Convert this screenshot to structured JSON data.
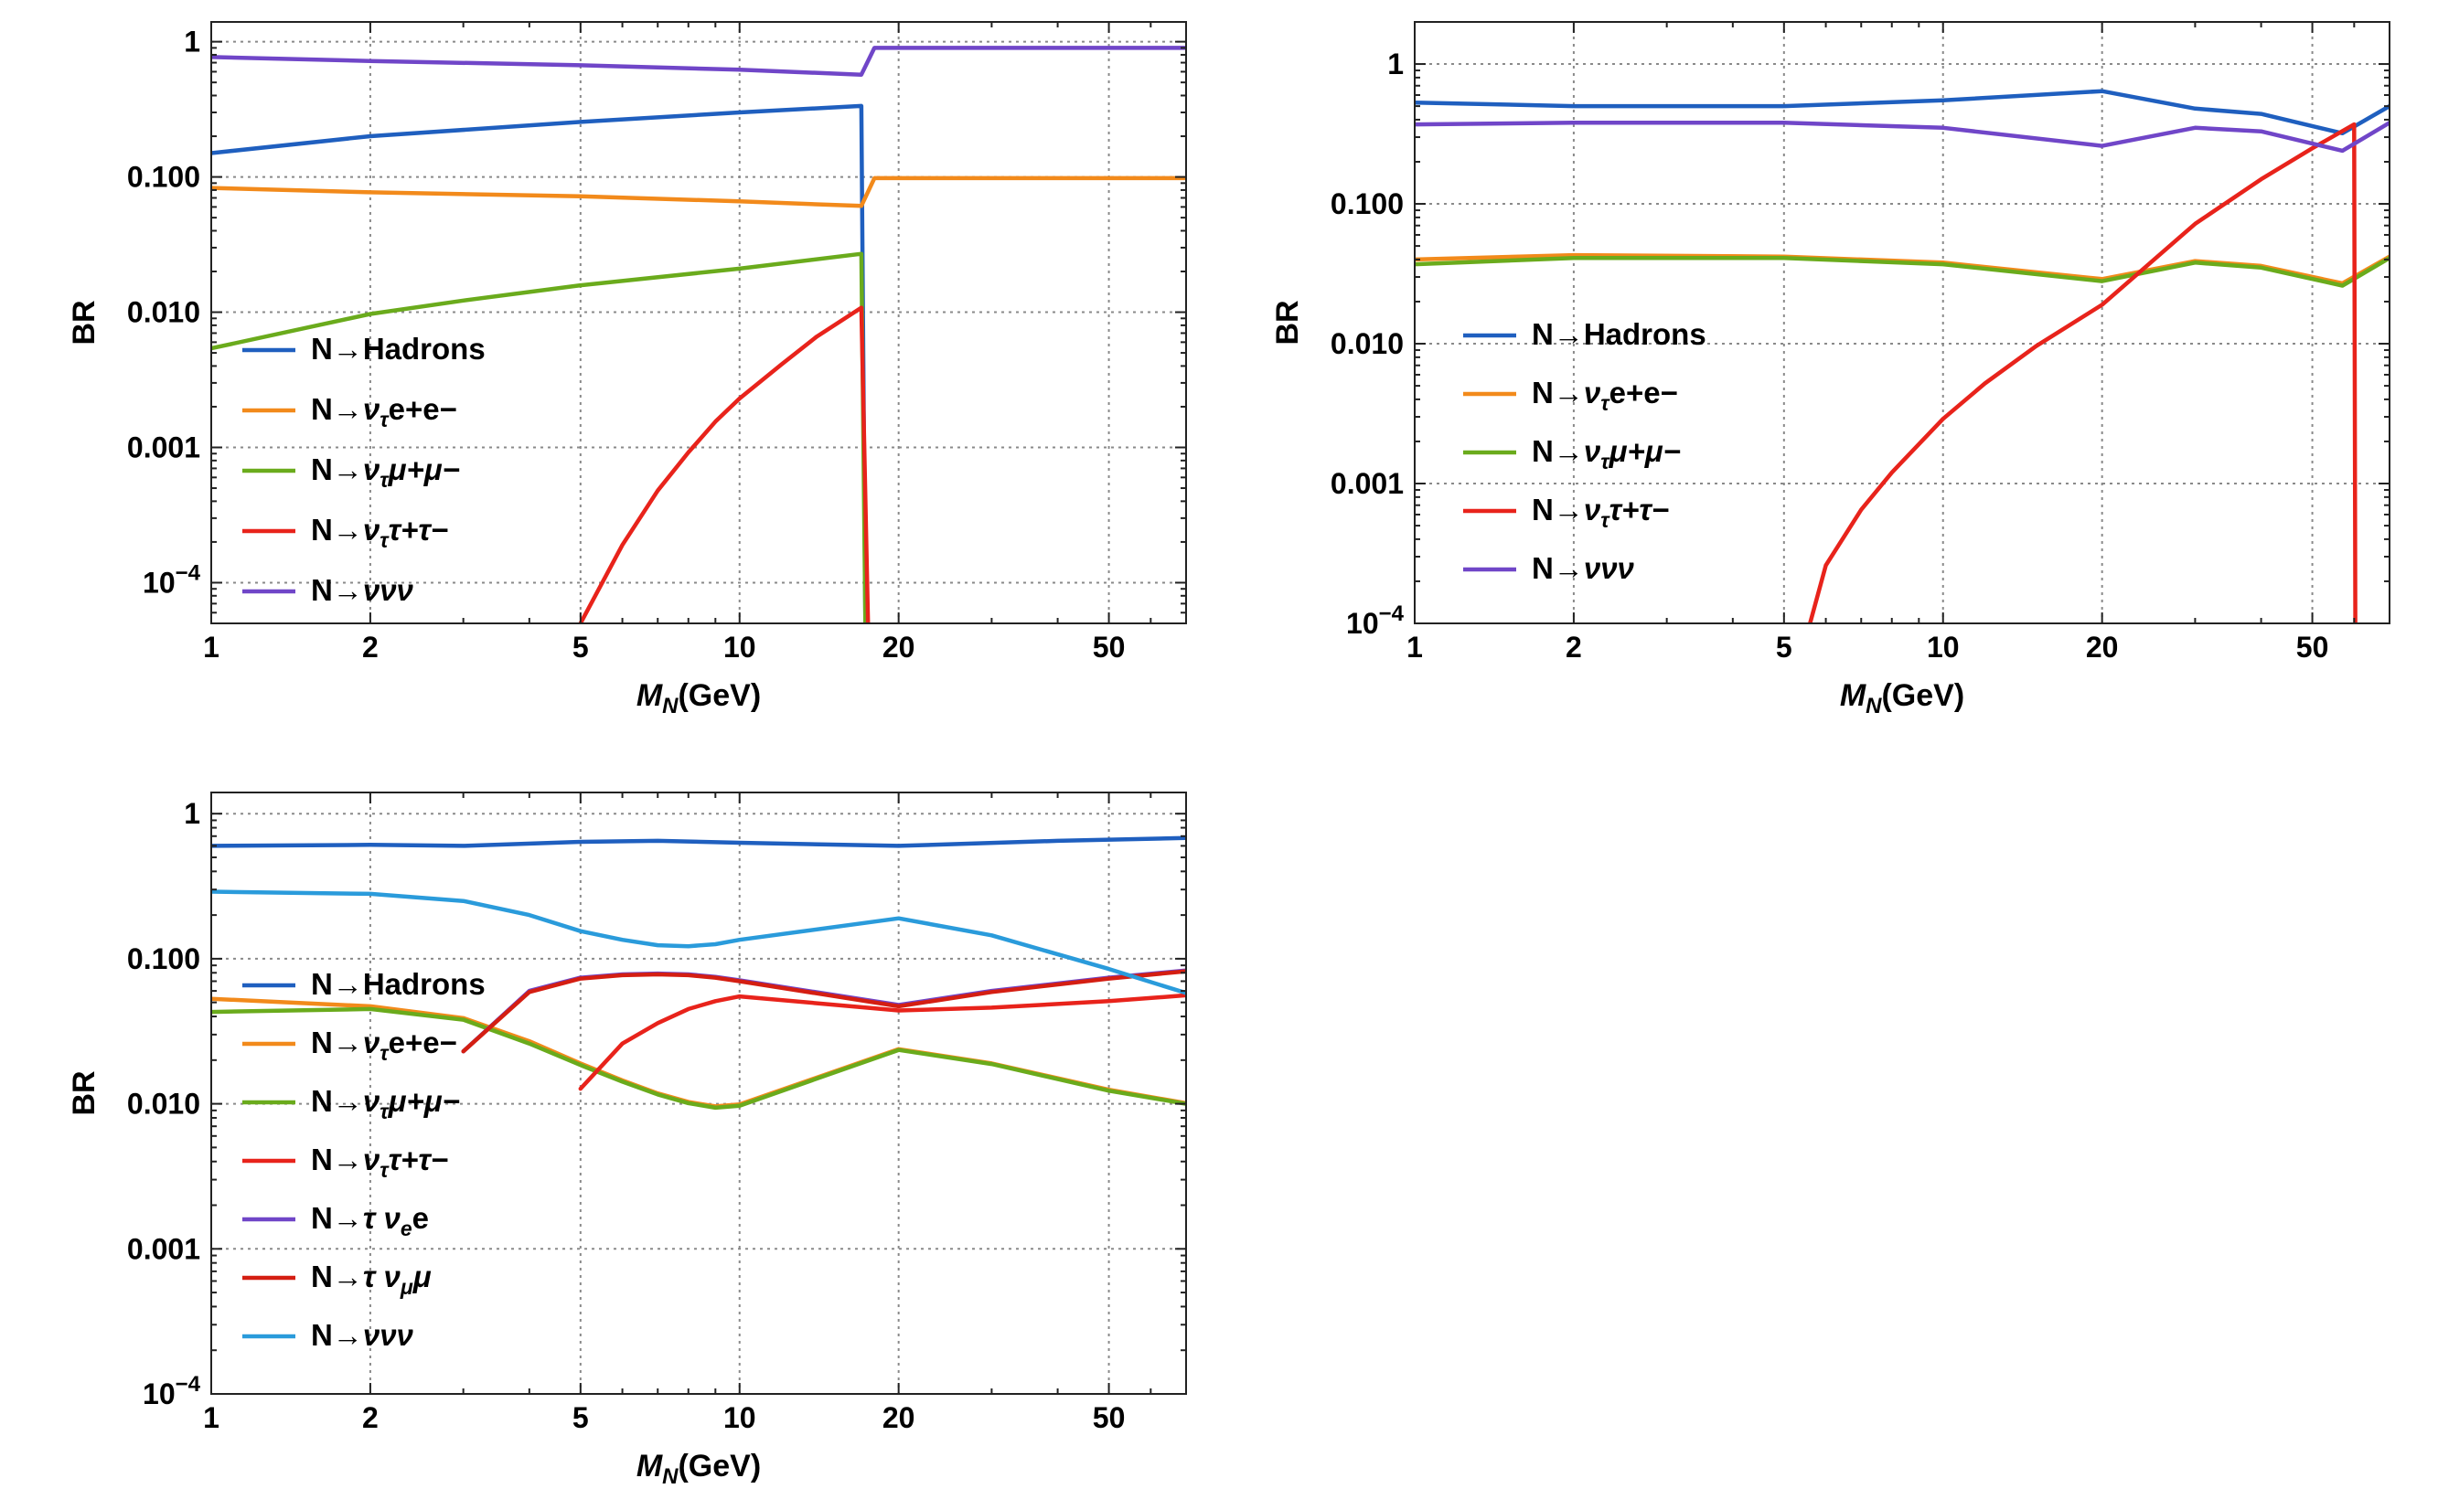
{
  "chart_data": [
    {
      "type": "line",
      "ylabel": "BR",
      "xlabel": "M_N(GeV)",
      "xlabel_main": "M",
      "xlabel_sub": "N",
      "xlabel_unit": "(GeV)",
      "xscale": "log",
      "yscale": "log",
      "xlim": [
        1,
        70
      ],
      "ylim": [
        5e-05,
        1.4
      ],
      "xticks": [
        1,
        2,
        5,
        10,
        20,
        50
      ],
      "xtick_labels": [
        "1",
        "2",
        "5",
        "10",
        "20",
        "50"
      ],
      "yticks": [
        1,
        0.1,
        0.01,
        0.001,
        0.0001
      ],
      "ytick_labels": [
        {
          "base": "1"
        },
        {
          "base": "0.100"
        },
        {
          "base": "0.010"
        },
        {
          "base": "0.001"
        },
        {
          "base": "10",
          "exp": "−4"
        }
      ],
      "grid": true,
      "legend_position": "bottom-left",
      "series": [
        {
          "name": "N→Hadrons",
          "label": {
            "pre": "N→Hadrons"
          },
          "color": "#1f5fbf",
          "points": [
            [
              1,
              0.15
            ],
            [
              2,
              0.2
            ],
            [
              5,
              0.255
            ],
            [
              10,
              0.3
            ],
            [
              17,
              0.335
            ],
            [
              17.3,
              5e-05
            ]
          ]
        },
        {
          "name": "N→ντe+e−",
          "label": {
            "pre": "N→",
            "nu": "ν",
            "sub": "τ",
            "post": "e+e−"
          },
          "color": "#f28a1b",
          "points": [
            [
              1,
              0.083
            ],
            [
              2,
              0.077
            ],
            [
              5,
              0.072
            ],
            [
              10,
              0.066
            ],
            [
              17,
              0.061
            ],
            [
              18,
              0.098
            ],
            [
              70,
              0.098
            ]
          ]
        },
        {
          "name": "N→ντμ+μ−",
          "label": {
            "pre": "N→",
            "nu": "ν",
            "sub": "τ",
            "post": "μ+μ−"
          },
          "color": "#6aab1c",
          "points": [
            [
              1,
              0.0054
            ],
            [
              2,
              0.0097
            ],
            [
              3,
              0.0122
            ],
            [
              5,
              0.0158
            ],
            [
              10,
              0.021
            ],
            [
              17,
              0.027
            ],
            [
              17.3,
              5e-05
            ]
          ]
        },
        {
          "name": "N→νττ+τ−",
          "label": {
            "pre": "N→",
            "nu": "ν",
            "sub": "τ",
            "post": "τ+τ−"
          },
          "color": "#e8231b",
          "points": [
            [
              5,
              5e-05
            ],
            [
              6,
              0.00019
            ],
            [
              7,
              0.00048
            ],
            [
              8,
              0.00092
            ],
            [
              9,
              0.00155
            ],
            [
              10,
              0.0023
            ],
            [
              12,
              0.0041
            ],
            [
              14,
              0.0066
            ],
            [
              17,
              0.0108
            ],
            [
              17.5,
              5e-05
            ]
          ]
        },
        {
          "name": "N→ννν",
          "label": {
            "pre": "N→",
            "nu": "ννν"
          },
          "color": "#7046c8",
          "points": [
            [
              1,
              0.77
            ],
            [
              2,
              0.72
            ],
            [
              5,
              0.67
            ],
            [
              10,
              0.62
            ],
            [
              17,
              0.57
            ],
            [
              18,
              0.9
            ],
            [
              70,
              0.9
            ]
          ]
        }
      ]
    },
    {
      "type": "line",
      "ylabel": "BR",
      "xlabel": "M_N(GeV)",
      "xlabel_main": "M",
      "xlabel_sub": "N",
      "xlabel_unit": "(GeV)",
      "xscale": "log",
      "yscale": "log",
      "xlim": [
        1,
        70
      ],
      "ylim": [
        0.0001,
        2
      ],
      "xticks": [
        1,
        2,
        5,
        10,
        20,
        50
      ],
      "xtick_labels": [
        "1",
        "2",
        "5",
        "10",
        "20",
        "50"
      ],
      "yticks": [
        1,
        0.1,
        0.01,
        0.001,
        0.0001
      ],
      "ytick_labels": [
        {
          "base": "1"
        },
        {
          "base": "0.100"
        },
        {
          "base": "0.010"
        },
        {
          "base": "0.001"
        },
        {
          "base": "10",
          "exp": "−4"
        }
      ],
      "grid": true,
      "legend_position": "center-left",
      "series": [
        {
          "name": "N→Hadrons",
          "label": {
            "pre": "N→Hadrons"
          },
          "color": "#1f5fbf",
          "points": [
            [
              1,
              0.53
            ],
            [
              2,
              0.5
            ],
            [
              5,
              0.5
            ],
            [
              10,
              0.55
            ],
            [
              20,
              0.64
            ],
            [
              30,
              0.48
            ],
            [
              40,
              0.44
            ],
            [
              57,
              0.32
            ],
            [
              70,
              0.5
            ]
          ]
        },
        {
          "name": "N→ντe+e−",
          "label": {
            "pre": "N→",
            "nu": "ν",
            "sub": "τ",
            "post": "e+e−"
          },
          "color": "#f28a1b",
          "points": [
            [
              1,
              0.04
            ],
            [
              2,
              0.043
            ],
            [
              5,
              0.042
            ],
            [
              10,
              0.038
            ],
            [
              20,
              0.029
            ],
            [
              30,
              0.039
            ],
            [
              40,
              0.036
            ],
            [
              57,
              0.027
            ],
            [
              70,
              0.042
            ]
          ]
        },
        {
          "name": "N→ντμ+μ−",
          "label": {
            "pre": "N→",
            "nu": "ν",
            "sub": "τ",
            "post": "μ+μ−"
          },
          "color": "#6aab1c",
          "points": [
            [
              1,
              0.037
            ],
            [
              2,
              0.041
            ],
            [
              5,
              0.041
            ],
            [
              10,
              0.037
            ],
            [
              20,
              0.028
            ],
            [
              30,
              0.038
            ],
            [
              40,
              0.035
            ],
            [
              57,
              0.026
            ],
            [
              70,
              0.041
            ]
          ]
        },
        {
          "name": "N→νττ+τ−",
          "label": {
            "pre": "N→",
            "nu": "ν",
            "sub": "τ",
            "post": "τ+τ−"
          },
          "color": "#e8231b",
          "points": [
            [
              5.6,
              0.0001
            ],
            [
              6,
              0.00026
            ],
            [
              7,
              0.00065
            ],
            [
              8,
              0.0012
            ],
            [
              10,
              0.0029
            ],
            [
              12,
              0.0052
            ],
            [
              15,
              0.0096
            ],
            [
              20,
              0.019
            ],
            [
              30,
              0.072
            ],
            [
              40,
              0.15
            ],
            [
              50,
              0.25
            ],
            [
              60,
              0.37
            ],
            [
              60.3,
              0.0001
            ]
          ]
        },
        {
          "name": "N→ννν",
          "label": {
            "pre": "N→",
            "nu": "ννν"
          },
          "color": "#7046c8",
          "points": [
            [
              1,
              0.37
            ],
            [
              2,
              0.38
            ],
            [
              5,
              0.38
            ],
            [
              10,
              0.35
            ],
            [
              20,
              0.26
            ],
            [
              30,
              0.35
            ],
            [
              40,
              0.33
            ],
            [
              57,
              0.24
            ],
            [
              70,
              0.38
            ]
          ]
        }
      ]
    },
    {
      "type": "line",
      "ylabel": "BR",
      "xlabel": "M_N(GeV)",
      "xlabel_main": "M",
      "xlabel_sub": "N",
      "xlabel_unit": "(GeV)",
      "xscale": "log",
      "yscale": "log",
      "xlim": [
        1,
        70
      ],
      "ylim": [
        0.0001,
        1.4
      ],
      "xticks": [
        1,
        2,
        5,
        10,
        20,
        50
      ],
      "xtick_labels": [
        "1",
        "2",
        "5",
        "10",
        "20",
        "50"
      ],
      "yticks": [
        1,
        0.1,
        0.01,
        0.001,
        0.0001
      ],
      "ytick_labels": [
        {
          "base": "1"
        },
        {
          "base": "0.100"
        },
        {
          "base": "0.010"
        },
        {
          "base": "0.001"
        },
        {
          "base": "10",
          "exp": "−4"
        }
      ],
      "grid": true,
      "legend_position": "left",
      "series": [
        {
          "name": "N→Hadrons",
          "label": {
            "pre": "N→Hadrons"
          },
          "color": "#1f5fbf",
          "points": [
            [
              1,
              0.6
            ],
            [
              2,
              0.61
            ],
            [
              3,
              0.6
            ],
            [
              5,
              0.64
            ],
            [
              7,
              0.65
            ],
            [
              10,
              0.63
            ],
            [
              20,
              0.6
            ],
            [
              40,
              0.65
            ],
            [
              70,
              0.68
            ]
          ]
        },
        {
          "name": "N→ντe+e−",
          "label": {
            "pre": "N→",
            "nu": "ν",
            "sub": "τ",
            "post": "e+e−"
          },
          "color": "#f28a1b",
          "points": [
            [
              1,
              0.053
            ],
            [
              2,
              0.047
            ],
            [
              3,
              0.039
            ],
            [
              4,
              0.027
            ],
            [
              5,
              0.019
            ],
            [
              6,
              0.0145
            ],
            [
              7,
              0.0118
            ],
            [
              8,
              0.0103
            ],
            [
              9,
              0.0096
            ],
            [
              10,
              0.0099
            ],
            [
              20,
              0.0238
            ],
            [
              30,
              0.019
            ],
            [
              50,
              0.0125
            ],
            [
              70,
              0.0101
            ]
          ]
        },
        {
          "name": "N→ντμ+μ−",
          "label": {
            "pre": "N→",
            "nu": "ν",
            "sub": "τ",
            "post": "μ+μ−"
          },
          "color": "#6aab1c",
          "points": [
            [
              1,
              0.043
            ],
            [
              2,
              0.045
            ],
            [
              3,
              0.038
            ],
            [
              4,
              0.026
            ],
            [
              5,
              0.0185
            ],
            [
              6,
              0.0142
            ],
            [
              7,
              0.0116
            ],
            [
              8,
              0.0101
            ],
            [
              9,
              0.0094
            ],
            [
              10,
              0.0097
            ],
            [
              20,
              0.0235
            ],
            [
              30,
              0.0188
            ],
            [
              50,
              0.0123
            ],
            [
              70,
              0.01
            ]
          ]
        },
        {
          "name": "N→νττ+τ−",
          "label": {
            "pre": "N→",
            "nu": "ν",
            "sub": "τ",
            "post": "τ+τ−"
          },
          "color": "#e8231b",
          "points": [
            [
              5,
              0.0127
            ],
            [
              6,
              0.026
            ],
            [
              7,
              0.036
            ],
            [
              8,
              0.045
            ],
            [
              9,
              0.051
            ],
            [
              10,
              0.055
            ],
            [
              20,
              0.044
            ],
            [
              30,
              0.046
            ],
            [
              50,
              0.051
            ],
            [
              70,
              0.056
            ]
          ]
        },
        {
          "name": "N→τ νe e",
          "label": {
            "pre": "N→",
            "nu": "τ ν",
            "sub": "e",
            "post": "e"
          },
          "color": "#7046c8",
          "points": [
            [
              3,
              0.023
            ],
            [
              4,
              0.06
            ],
            [
              5,
              0.074
            ],
            [
              6,
              0.078
            ],
            [
              7,
              0.079
            ],
            [
              8,
              0.078
            ],
            [
              9,
              0.075
            ],
            [
              10,
              0.071
            ],
            [
              20,
              0.048
            ],
            [
              30,
              0.06
            ],
            [
              50,
              0.074
            ],
            [
              70,
              0.083
            ]
          ]
        },
        {
          "name": "N→τ νμ μ",
          "label": {
            "pre": "N→",
            "nu": "τ ν",
            "sub": "μ",
            "post": "μ"
          },
          "color": "#d41e12",
          "points": [
            [
              3,
              0.023
            ],
            [
              4,
              0.059
            ],
            [
              5,
              0.073
            ],
            [
              6,
              0.077
            ],
            [
              7,
              0.078
            ],
            [
              8,
              0.077
            ],
            [
              9,
              0.074
            ],
            [
              10,
              0.07
            ],
            [
              20,
              0.047
            ],
            [
              30,
              0.059
            ],
            [
              50,
              0.073
            ],
            [
              70,
              0.082
            ]
          ]
        },
        {
          "name": "N→ννν",
          "label": {
            "pre": "N→",
            "nu": "ννν"
          },
          "color": "#2a9bdb",
          "points": [
            [
              1,
              0.29
            ],
            [
              2,
              0.28
            ],
            [
              3,
              0.25
            ],
            [
              4,
              0.2
            ],
            [
              5,
              0.155
            ],
            [
              6,
              0.135
            ],
            [
              7,
              0.124
            ],
            [
              8,
              0.122
            ],
            [
              9,
              0.126
            ],
            [
              10,
              0.135
            ],
            [
              20,
              0.19
            ],
            [
              30,
              0.145
            ],
            [
              50,
              0.085
            ],
            [
              70,
              0.058
            ]
          ]
        }
      ]
    }
  ]
}
